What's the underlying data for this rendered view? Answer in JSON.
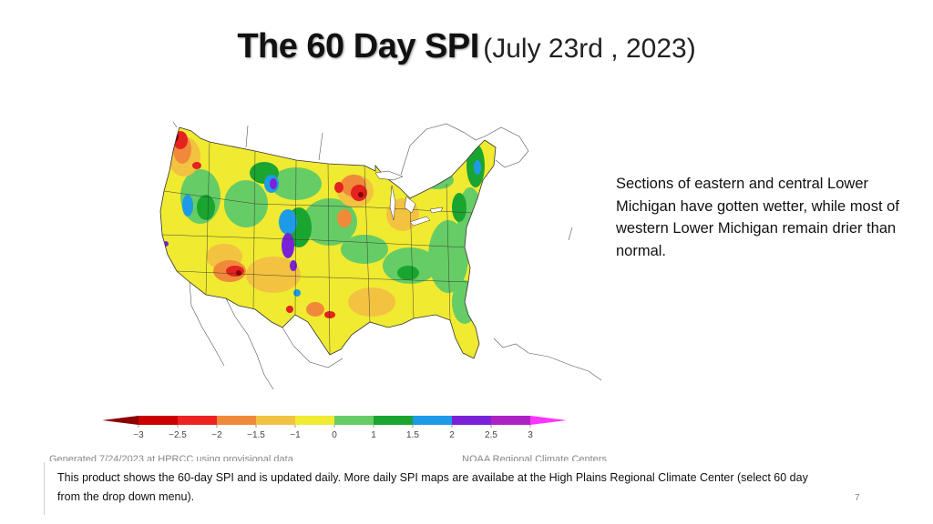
{
  "slide": {
    "title_main": "The 60 Day SPI",
    "title_sub": "(July 23rd , 2023)",
    "side_text": "Sections of eastern and central Lower Michigan have gotten wetter, while most of western Lower Michigan remain drier than normal.",
    "credit_left": "Generated 7/24/2023 at HPRCC using provisional data",
    "credit_right": "NOAA Regional Climate Centers",
    "caption": "This product shows the 60-day SPI and is updated daily. More daily SPI maps are availabe at the High Plains Regional Climate Center (select 60 day from the drop down menu).",
    "slide_number": "7"
  },
  "legend": {
    "ticks": [
      "−3",
      "−2.5",
      "−2",
      "−1.5",
      "−1",
      "0",
      "1",
      "1.5",
      "2",
      "2.5",
      "3"
    ],
    "colors": [
      "#8b0000",
      "#cc0000",
      "#ee2222",
      "#f08a3a",
      "#f3c240",
      "#f0ea30",
      "#66cc66",
      "#19a530",
      "#1e9be6",
      "#7b22d8",
      "#ad22c4",
      "#ff33ff"
    ]
  },
  "colors": {
    "extreme_dry": "#8b0000",
    "severe_dry": "#e4221f",
    "moderate_dry": "#f08a3a",
    "abnormal_dry": "#f3c240",
    "near_normal": "#f0ea30",
    "mod_wet": "#66cc66",
    "very_wet": "#19a530",
    "severe_wet": "#1e9be6",
    "extreme_wet": "#7b22d8"
  }
}
